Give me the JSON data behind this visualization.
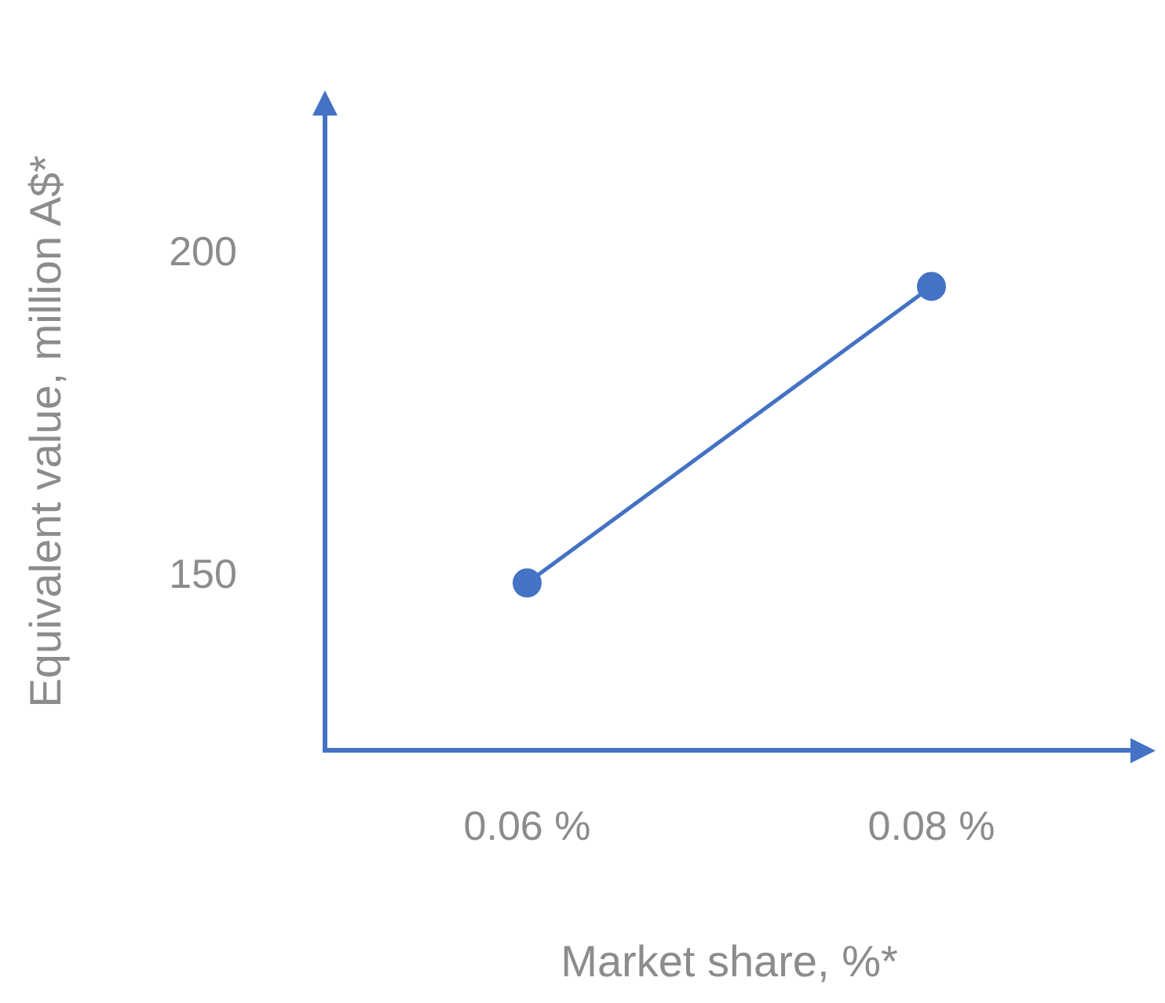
{
  "chart_data": {
    "type": "line",
    "xlabel": "Market share, %*",
    "ylabel": "Equivalent value, million A$*",
    "categories": [
      "0.06 %",
      "0.08 %"
    ],
    "series": [
      {
        "color": "#4472c4",
        "values": [
          149,
          195
        ]
      }
    ],
    "ylim": [
      123,
      222
    ],
    "yticks": [
      150,
      200
    ],
    "grid": false,
    "legend": false,
    "marker": "circle",
    "line_style": "solid"
  }
}
